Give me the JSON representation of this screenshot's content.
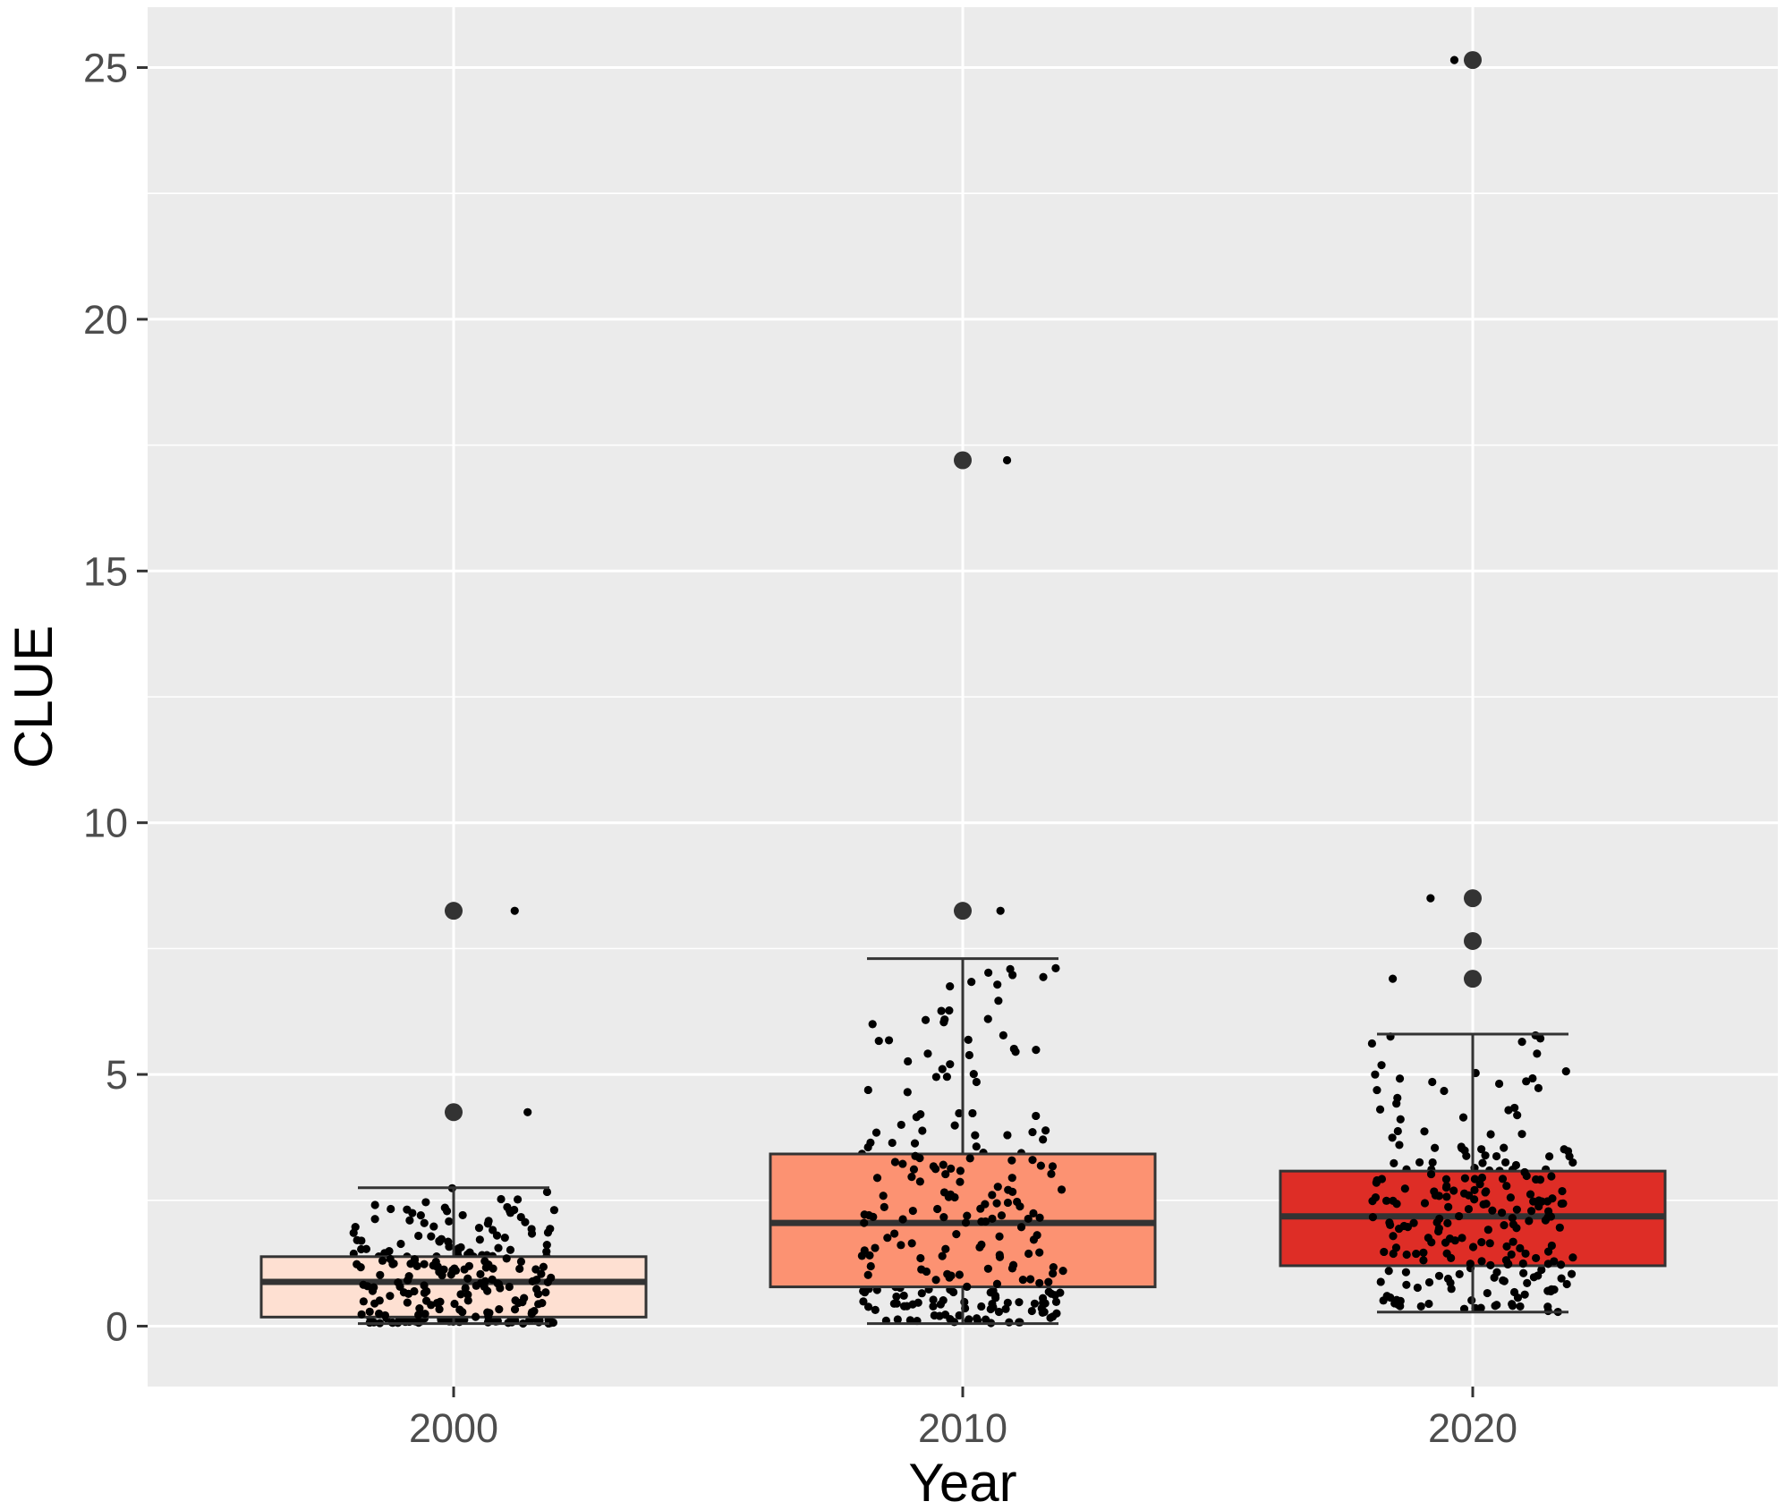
{
  "chart_data": {
    "type": "boxplot",
    "title": "",
    "xlabel": "Year",
    "ylabel": "CLUE",
    "categories": [
      "2000",
      "2010",
      "2020"
    ],
    "ylim": [
      -1.2,
      26.2
    ],
    "y_ticks": [
      0,
      5,
      10,
      15,
      20,
      25
    ],
    "grid": true,
    "legend": "none",
    "colors": {
      "panel_background": "#ebebeb",
      "grid": "#ffffff",
      "box_outline": "#333333",
      "points": "#000000",
      "box_fills": [
        "#fee0d2",
        "#fc9272",
        "#de2d26"
      ]
    },
    "boxes": [
      {
        "category": "2000",
        "q1": 0.18,
        "median": 0.88,
        "q3": 1.38,
        "whisker_low": 0.05,
        "whisker_high": 2.75,
        "outliers": [
          4.25,
          8.25
        ]
      },
      {
        "category": "2010",
        "q1": 0.78,
        "median": 2.05,
        "q3": 3.42,
        "whisker_low": 0.05,
        "whisker_high": 7.3,
        "outliers": [
          8.25,
          17.2
        ]
      },
      {
        "category": "2020",
        "q1": 1.2,
        "median": 2.18,
        "q3": 3.08,
        "whisker_low": 0.28,
        "whisker_high": 5.8,
        "outliers": [
          6.9,
          7.65,
          8.5,
          25.15
        ]
      }
    ],
    "jitter_points_shown": true
  }
}
